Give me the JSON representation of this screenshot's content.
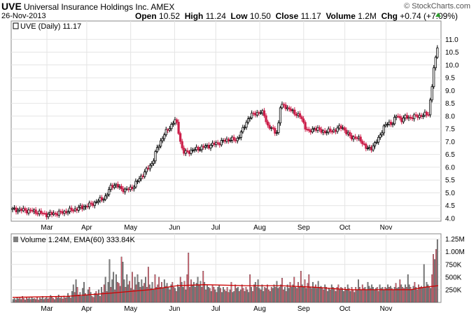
{
  "header": {
    "symbol": "UVE",
    "company": "Universal Insurance Holdings Inc.  AMEX",
    "date": "26-Nov-2013",
    "copyright": "© StockCharts.com",
    "open_label": "Open",
    "open": "10.52",
    "high_label": "High",
    "high": "11.24",
    "low_label": "Low",
    "low": "10.50",
    "close_label": "Close",
    "close": "11.17",
    "volume_label": "Volume",
    "volume": "1.2M",
    "chg_label": "Chg",
    "chg": "+0.74 (+7.09%)",
    "up_color": "#2e9f2e"
  },
  "price_legend": "UVE (Daily) 11.17",
  "volume_legend": "Volume 1.24M, EMA(60) 333.84K",
  "chart_data": {
    "type": "line",
    "price": {
      "points": [
        [
          0,
          4.35
        ],
        [
          8,
          4.32
        ],
        [
          15,
          4.28
        ],
        [
          25,
          4.15
        ],
        [
          35,
          4.22
        ],
        [
          45,
          4.35
        ],
        [
          55,
          4.5
        ],
        [
          60,
          4.62
        ],
        [
          68,
          4.85
        ],
        [
          72,
          5.3
        ],
        [
          75,
          5.3
        ],
        [
          78,
          5.2
        ],
        [
          82,
          5.1
        ],
        [
          85,
          5.15
        ],
        [
          88,
          5.25
        ],
        [
          93,
          5.6
        ],
        [
          97,
          5.85
        ],
        [
          102,
          6.2
        ],
        [
          105,
          6.7
        ],
        [
          110,
          7.25
        ],
        [
          115,
          7.6
        ],
        [
          118,
          7.85
        ],
        [
          120,
          7.65
        ],
        [
          123,
          6.8
        ],
        [
          125,
          6.55
        ],
        [
          130,
          6.65
        ],
        [
          140,
          6.8
        ],
        [
          150,
          6.95
        ],
        [
          158,
          7.1
        ],
        [
          163,
          7.05
        ],
        [
          168,
          7.5
        ],
        [
          172,
          7.95
        ],
        [
          176,
          8.1
        ],
        [
          180,
          8.15
        ],
        [
          183,
          8.1
        ],
        [
          186,
          7.6
        ],
        [
          190,
          7.45
        ],
        [
          193,
          7.35
        ],
        [
          195,
          8.35
        ],
        [
          198,
          8.45
        ],
        [
          200,
          8.3
        ],
        [
          205,
          8.15
        ],
        [
          210,
          7.95
        ],
        [
          213,
          7.6
        ],
        [
          216,
          7.35
        ],
        [
          220,
          7.55
        ],
        [
          225,
          7.4
        ],
        [
          230,
          7.4
        ],
        [
          235,
          7.45
        ],
        [
          240,
          7.6
        ],
        [
          243,
          7.35
        ],
        [
          246,
          7.2
        ],
        [
          250,
          7.15
        ],
        [
          254,
          7.05
        ],
        [
          258,
          6.7
        ],
        [
          261,
          6.75
        ],
        [
          266,
          7.05
        ],
        [
          270,
          7.55
        ],
        [
          273,
          7.7
        ],
        [
          277,
          7.75
        ],
        [
          280,
          8.05
        ],
        [
          283,
          7.85
        ],
        [
          286,
          7.95
        ],
        [
          290,
          7.95
        ],
        [
          295,
          8.0
        ],
        [
          300,
          8.05
        ],
        [
          303,
          8.1
        ],
        [
          305,
          8.95
        ],
        [
          307,
          9.95
        ],
        [
          309,
          10.45
        ],
        [
          310,
          11.17
        ]
      ],
      "min": 4.1,
      "max": 11.24,
      "ylim": [
        4.0,
        11.5
      ],
      "yticks": [
        "4.0",
        "4.5",
        "5.0",
        "5.5",
        "6.0",
        "6.5",
        "7.0",
        "7.5",
        "8.0",
        "8.5",
        "9.0",
        "9.5",
        "10.0",
        "10.5",
        "11.0"
      ],
      "up_color": "#000000",
      "down_color": "#cc1f4a"
    },
    "volume": {
      "yticks": [
        "250K",
        "500K",
        "750K",
        "1.00M",
        "1.25M"
      ],
      "ylim_max": 1.3,
      "bars": [
        0.06,
        0.08,
        0.05,
        0.1,
        0.07,
        0.09,
        0.06,
        0.12,
        0.08,
        0.05,
        0.1,
        0.07,
        0.09,
        0.06,
        0.11,
        0.07,
        0.08,
        0.06,
        0.1,
        0.05,
        0.09,
        0.07,
        0.12,
        0.06,
        0.08,
        0.1,
        0.07,
        0.09,
        0.14,
        0.1,
        0.08,
        0.06,
        0.12,
        0.09,
        0.15,
        0.08,
        0.11,
        0.07,
        0.13,
        0.09,
        0.1,
        0.18,
        0.12,
        0.09,
        0.22,
        0.35,
        0.2,
        0.45,
        0.3,
        0.15,
        0.2,
        0.12,
        0.28,
        0.4,
        0.18,
        0.15,
        0.25,
        0.3,
        0.2,
        0.12,
        0.1,
        0.18,
        0.22,
        0.15,
        0.25,
        0.12,
        0.3,
        0.2,
        0.35,
        0.5,
        0.22,
        0.4,
        0.85,
        0.3,
        0.45,
        0.6,
        0.25,
        0.55,
        0.4,
        0.38,
        0.32,
        0.9,
        0.8,
        0.45,
        0.3,
        0.55,
        0.35,
        0.42,
        0.28,
        0.6,
        0.25,
        0.5,
        0.35,
        0.55,
        0.4,
        0.3,
        0.45,
        0.32,
        0.38,
        0.5,
        0.3,
        0.7,
        0.35,
        0.28,
        0.4,
        0.25,
        0.55,
        0.3,
        0.35,
        0.5,
        0.3,
        0.4,
        0.28,
        0.45,
        0.32,
        0.38,
        0.3,
        0.25,
        0.35,
        0.4,
        0.3,
        0.28,
        0.22,
        0.35,
        0.3,
        0.5,
        0.4,
        0.3,
        0.42,
        0.25,
        0.55,
        0.98,
        0.3,
        0.45,
        0.35,
        0.4,
        0.3,
        0.38,
        0.5,
        0.35,
        0.42,
        0.3,
        0.62,
        0.4,
        0.25,
        0.35,
        0.3,
        0.28,
        0.22,
        0.35,
        0.3,
        0.25,
        0.2,
        0.3,
        0.35,
        0.28,
        0.2,
        0.3,
        0.25,
        0.22,
        0.3,
        0.2,
        0.25,
        0.4,
        0.2,
        0.22,
        0.35,
        0.28,
        0.3,
        0.22,
        0.25,
        0.35,
        0.28,
        0.22,
        0.3,
        0.25,
        0.2,
        0.55,
        0.3,
        0.22,
        0.35,
        0.4,
        0.3,
        0.45,
        0.28,
        0.25,
        0.35,
        0.22,
        0.3,
        0.28,
        0.35,
        0.25,
        0.22,
        0.3,
        0.28,
        0.35,
        0.3,
        0.42,
        0.28,
        0.3,
        0.35,
        0.48,
        0.25,
        0.3,
        0.22,
        0.35,
        0.28,
        0.4,
        0.3,
        0.35,
        0.5,
        0.3,
        0.28,
        0.4,
        0.3,
        0.62,
        0.35,
        0.3,
        0.45,
        0.28,
        0.38,
        0.55,
        0.3,
        0.28,
        0.4,
        0.3,
        0.35,
        0.28,
        0.42,
        0.3,
        0.32,
        0.28,
        0.25,
        0.35,
        0.3,
        0.22,
        0.28,
        0.25,
        0.35,
        0.3,
        0.28,
        0.22,
        0.3,
        0.35,
        0.25,
        0.3,
        0.28,
        0.22,
        0.3,
        0.25,
        0.35,
        0.28,
        0.22,
        0.3,
        0.25,
        0.2,
        0.3,
        0.25,
        0.45,
        0.3,
        0.25,
        0.35,
        0.28,
        0.3,
        0.25,
        0.4,
        0.32,
        0.28,
        0.35,
        0.3,
        0.25,
        0.28,
        0.3,
        0.22,
        0.35,
        0.28,
        0.3,
        0.25,
        0.3,
        0.28,
        0.35,
        0.3,
        0.32,
        0.28,
        0.25,
        0.3,
        0.38,
        0.28,
        0.3,
        0.45,
        0.35,
        0.3,
        0.28,
        0.35,
        0.3,
        0.55,
        0.35,
        0.3,
        0.25,
        0.32,
        0.4,
        0.3,
        0.25,
        0.35,
        0.3,
        0.32,
        0.28,
        0.75,
        0.3,
        0.4,
        0.35,
        0.3,
        0.28,
        0.55,
        0.95,
        0.85,
        1.05,
        1.24
      ],
      "ema": [
        [
          0,
          0.1
        ],
        [
          40,
          0.12
        ],
        [
          70,
          0.18
        ],
        [
          100,
          0.25
        ],
        [
          120,
          0.33
        ],
        [
          140,
          0.35
        ],
        [
          170,
          0.33
        ],
        [
          195,
          0.33
        ],
        [
          220,
          0.3
        ],
        [
          245,
          0.25
        ],
        [
          270,
          0.25
        ],
        [
          290,
          0.25
        ],
        [
          300,
          0.3
        ],
        [
          310,
          0.33
        ]
      ],
      "up_color": "#808080",
      "down_color": "#e06070",
      "ema_color": "#cc0000"
    },
    "x_labels": [
      "Mar",
      "Apr",
      "May",
      "Jun",
      "Jul",
      "Aug",
      "Sep",
      "Oct",
      "Nov"
    ],
    "x_label_days": [
      25,
      54,
      86,
      118,
      148,
      180,
      212,
      242,
      272
    ],
    "x_range": [
      0,
      310
    ],
    "grid": true,
    "legend": "top-left"
  }
}
